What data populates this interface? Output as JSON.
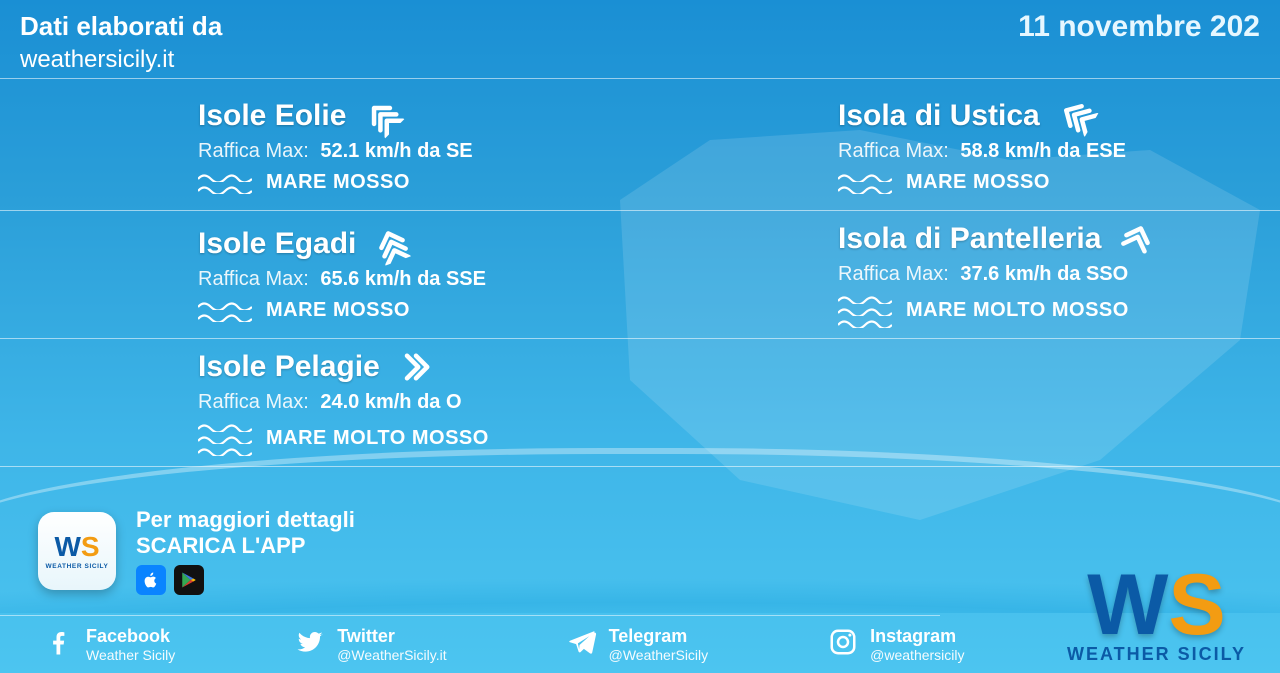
{
  "colors": {
    "bg_top": "#1a8fd4",
    "bg_bottom": "#4cc5f0",
    "text": "#ffffff",
    "date": "#e6f7ff",
    "logo_w": "#0b5aa6",
    "logo_s": "#f39c12",
    "separator": "rgba(255,255,255,0.55)"
  },
  "header": {
    "source_line1": "Dati elaborati da",
    "source_line2": "weathersicily.it",
    "date": "11 novembre 202"
  },
  "gust_label": "Raffica Max:",
  "locations": [
    {
      "name": "Isole Eolie",
      "gust_value": "52.1 km/h da SE",
      "wind_icon": "triple-arrow",
      "wind_rotation_deg": 315,
      "sea_level": 2,
      "sea_label": "MARE MOSSO"
    },
    {
      "name": "Isola di Ustica",
      "gust_value": "58.8 km/h da ESE",
      "wind_icon": "triple-arrow",
      "wind_rotation_deg": 300,
      "sea_level": 2,
      "sea_label": "MARE MOSSO"
    },
    {
      "name": "Isole Egadi",
      "gust_value": "65.6 km/h da SSE",
      "wind_icon": "triple-arrow",
      "wind_rotation_deg": 340,
      "sea_level": 2,
      "sea_label": "MARE MOSSO"
    },
    {
      "name": "Isola di Pantelleria",
      "gust_value": "37.6 km/h da SSO",
      "wind_icon": "double-arrow",
      "wind_rotation_deg": 20,
      "sea_level": 3,
      "sea_label": "MARE MOLTO MOSSO"
    },
    {
      "name": "Isole Pelagie",
      "gust_value": "24.0 km/h da O",
      "wind_icon": "double-arrow",
      "wind_rotation_deg": 90,
      "sea_level": 3,
      "sea_label": "MARE MOLTO MOSSO"
    }
  ],
  "promo": {
    "line1": "Per maggiori dettagli",
    "line2": "SCARICA L'APP",
    "logo_text_w": "W",
    "logo_text_s": "S",
    "logo_sub": "WEATHER SICILY"
  },
  "social": [
    {
      "icon": "facebook",
      "title": "Facebook",
      "handle": "Weather Sicily"
    },
    {
      "icon": "twitter",
      "title": "Twitter",
      "handle": "@WeatherSicily.it"
    },
    {
      "icon": "telegram",
      "title": "Telegram",
      "handle": "@WeatherSicily"
    },
    {
      "icon": "instagram",
      "title": "Instagram",
      "handle": "@weathersicily"
    }
  ],
  "big_logo": {
    "w": "W",
    "s": "S",
    "sub": "WEATHER SICILY"
  }
}
